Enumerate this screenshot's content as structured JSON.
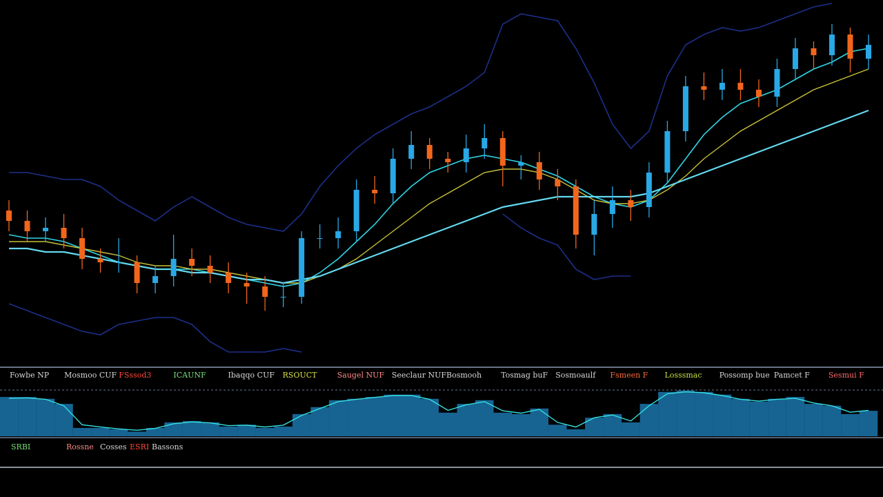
{
  "chart_data": {
    "type": "candlestick",
    "ylim": [
      0,
      106
    ],
    "up_color": "#29a8e6",
    "down_color": "#f2661c",
    "open": [
      45,
      42,
      39,
      40,
      37,
      31,
      30,
      30,
      24,
      26,
      31,
      29,
      27,
      24,
      23,
      20,
      20,
      37,
      37,
      39,
      51,
      50,
      60,
      64,
      60,
      59,
      63,
      66,
      58,
      59,
      54,
      52,
      38,
      44,
      48,
      46,
      56,
      68,
      81,
      80,
      82,
      80,
      78,
      86,
      92,
      90,
      96,
      89
    ],
    "high": [
      48,
      45,
      43,
      44,
      40,
      34,
      37,
      32,
      29,
      38,
      34,
      32,
      30,
      27,
      26,
      24,
      39,
      41,
      43,
      54,
      55,
      63,
      68,
      66,
      62,
      67,
      70,
      68,
      61,
      62,
      57,
      54,
      48,
      52,
      51,
      59,
      71,
      84,
      85,
      86,
      86,
      83,
      89,
      95,
      94,
      99,
      98,
      96
    ],
    "low": [
      39,
      36,
      36,
      34,
      28,
      27,
      27,
      21,
      21,
      23,
      26,
      24,
      21,
      18,
      16,
      17,
      18,
      34,
      34,
      36,
      47,
      47,
      57,
      57,
      56,
      56,
      60,
      52,
      54,
      51,
      48,
      34,
      32,
      40,
      42,
      43,
      53,
      65,
      77,
      77,
      77,
      75,
      75,
      83,
      86,
      87,
      85,
      86
    ],
    "close": [
      42,
      39,
      40,
      37,
      31,
      30,
      30,
      24,
      26,
      31,
      29,
      27,
      24,
      23,
      20,
      20,
      37,
      37,
      39,
      51,
      50,
      60,
      64,
      60,
      59,
      63,
      66,
      58,
      59,
      54,
      52,
      38,
      44,
      48,
      46,
      56,
      68,
      81,
      80,
      82,
      80,
      78,
      86,
      92,
      90,
      96,
      89,
      93
    ],
    "series": [
      {
        "color": "#2fd6e6",
        "width": 1.6,
        "values": [
          38,
          37,
          37,
          36,
          34,
          32,
          30,
          29,
          28,
          28,
          28,
          27,
          26,
          25,
          24,
          23,
          24,
          27,
          31,
          36,
          41,
          47,
          52,
          56,
          58,
          60,
          61,
          60,
          59,
          57,
          55,
          52,
          49,
          47,
          46,
          48,
          53,
          60,
          67,
          72,
          76,
          78,
          80,
          83,
          86,
          88,
          91,
          92
        ]
      },
      {
        "color": "#c9c23a",
        "width": 1.4,
        "values": [
          36,
          36,
          36,
          35,
          34,
          33,
          32,
          30,
          29,
          29,
          28,
          28,
          27,
          26,
          25,
          24,
          24,
          26,
          28,
          31,
          35,
          39,
          43,
          47,
          50,
          53,
          56,
          57,
          57,
          56,
          54,
          51,
          48,
          47,
          47,
          48,
          51,
          55,
          60,
          64,
          68,
          71,
          74,
          77,
          80,
          82,
          84,
          86
        ]
      },
      {
        "color": "#63d9f0",
        "width": 2.2,
        "values": [
          34,
          34,
          33,
          33,
          32,
          31,
          30,
          29,
          28,
          28,
          27,
          27,
          26,
          25,
          25,
          24,
          25,
          26,
          28,
          30,
          32,
          34,
          36,
          38,
          40,
          42,
          44,
          46,
          47,
          48,
          49,
          49,
          49,
          49,
          49,
          50,
          52,
          54,
          56,
          58,
          60,
          62,
          64,
          66,
          68,
          70,
          72,
          74
        ]
      },
      {
        "color": "#1d2f8a",
        "width": 1.6,
        "values": [
          56,
          56,
          55,
          54,
          54,
          52,
          48,
          45,
          42,
          46,
          49,
          46,
          43,
          41,
          40,
          39,
          44,
          52,
          58,
          63,
          67,
          70,
          73,
          75,
          78,
          81,
          85,
          99,
          102,
          101,
          100,
          92,
          82,
          70,
          63,
          68,
          84,
          93,
          96,
          98,
          97,
          98,
          100,
          102,
          104,
          105,
          null,
          null
        ]
      },
      {
        "color": "#1d2f8a",
        "width": 1.6,
        "values": [
          18,
          16,
          14,
          12,
          10,
          9,
          12,
          13,
          14,
          14,
          12,
          7,
          4,
          4,
          4,
          5,
          4,
          null,
          null,
          null,
          null,
          null,
          null,
          null,
          null,
          null,
          null,
          44,
          40,
          37,
          35,
          28,
          25,
          26,
          26,
          null,
          null,
          null,
          null,
          null,
          null,
          null,
          null,
          null,
          null,
          null,
          null,
          null
        ]
      }
    ],
    "oscillator": {
      "ylim": [
        0,
        100
      ],
      "bar_color": "#1f86c4",
      "line_color": "#35e0e0",
      "values": [
        85,
        85,
        81,
        70,
        18,
        18,
        15,
        10,
        18,
        30,
        33,
        30,
        21,
        25,
        18,
        21,
        48,
        63,
        78,
        81,
        85,
        90,
        90,
        81,
        51,
        70,
        78,
        51,
        48,
        60,
        25,
        15,
        40,
        48,
        30,
        70,
        96,
        99,
        96,
        90,
        81,
        75,
        81,
        85,
        70,
        66,
        48,
        55
      ],
      "signal": [
        82,
        83,
        80,
        66,
        25,
        20,
        16,
        13,
        17,
        27,
        31,
        29,
        23,
        24,
        20,
        24,
        45,
        60,
        75,
        80,
        84,
        88,
        88,
        80,
        56,
        68,
        75,
        55,
        50,
        58,
        30,
        20,
        40,
        46,
        33,
        66,
        92,
        96,
        94,
        88,
        80,
        76,
        80,
        82,
        72,
        66,
        52,
        56
      ]
    }
  },
  "indicator_bar": [
    {
      "text": "Fowbe NP",
      "color": "#d8d8d8"
    },
    {
      "text": "Mosmoo CUF",
      "color": "#d8d8d8"
    },
    {
      "text": "FSssod3",
      "color": "#ff4a3a"
    },
    {
      "text": "ICAUNF",
      "color": "#7be07b"
    },
    {
      "text": "Ibaqqo CUF",
      "color": "#d8d8d8"
    },
    {
      "text": "RSOUCT",
      "color": "#d9e04a"
    },
    {
      "text": "Saugel NUF",
      "color": "#ff8a8a"
    },
    {
      "text": "Seeclaur NUF",
      "color": "#d8d8d8"
    },
    {
      "text": "Bosmooh",
      "color": "#d8d8d8"
    },
    {
      "text": "Tosmag buF",
      "color": "#d8d8d8"
    },
    {
      "text": "Sosmoaulf",
      "color": "#d8d8d8"
    },
    {
      "text": "Fsmeen F",
      "color": "#ff6a3a"
    },
    {
      "text": "Losssmac",
      "color": "#c4e040"
    },
    {
      "text": "Possomp bue",
      "color": "#d8d8d8"
    },
    {
      "text": "Pamcet F",
      "color": "#d8d8d8"
    },
    {
      "text": "Sesmui F",
      "color": "#ff6a6a"
    }
  ],
  "status_bar": [
    {
      "text": "SRBI",
      "color": "#7be07b"
    },
    {
      "text": "Rossne",
      "color": "#ff8a8a"
    },
    {
      "text": "Cosses",
      "color": "#d8d8d8"
    },
    {
      "text": "ESRI",
      "color": "#ff4a3a"
    },
    {
      "text": "Bassons",
      "color": "#d8d8d8"
    }
  ]
}
